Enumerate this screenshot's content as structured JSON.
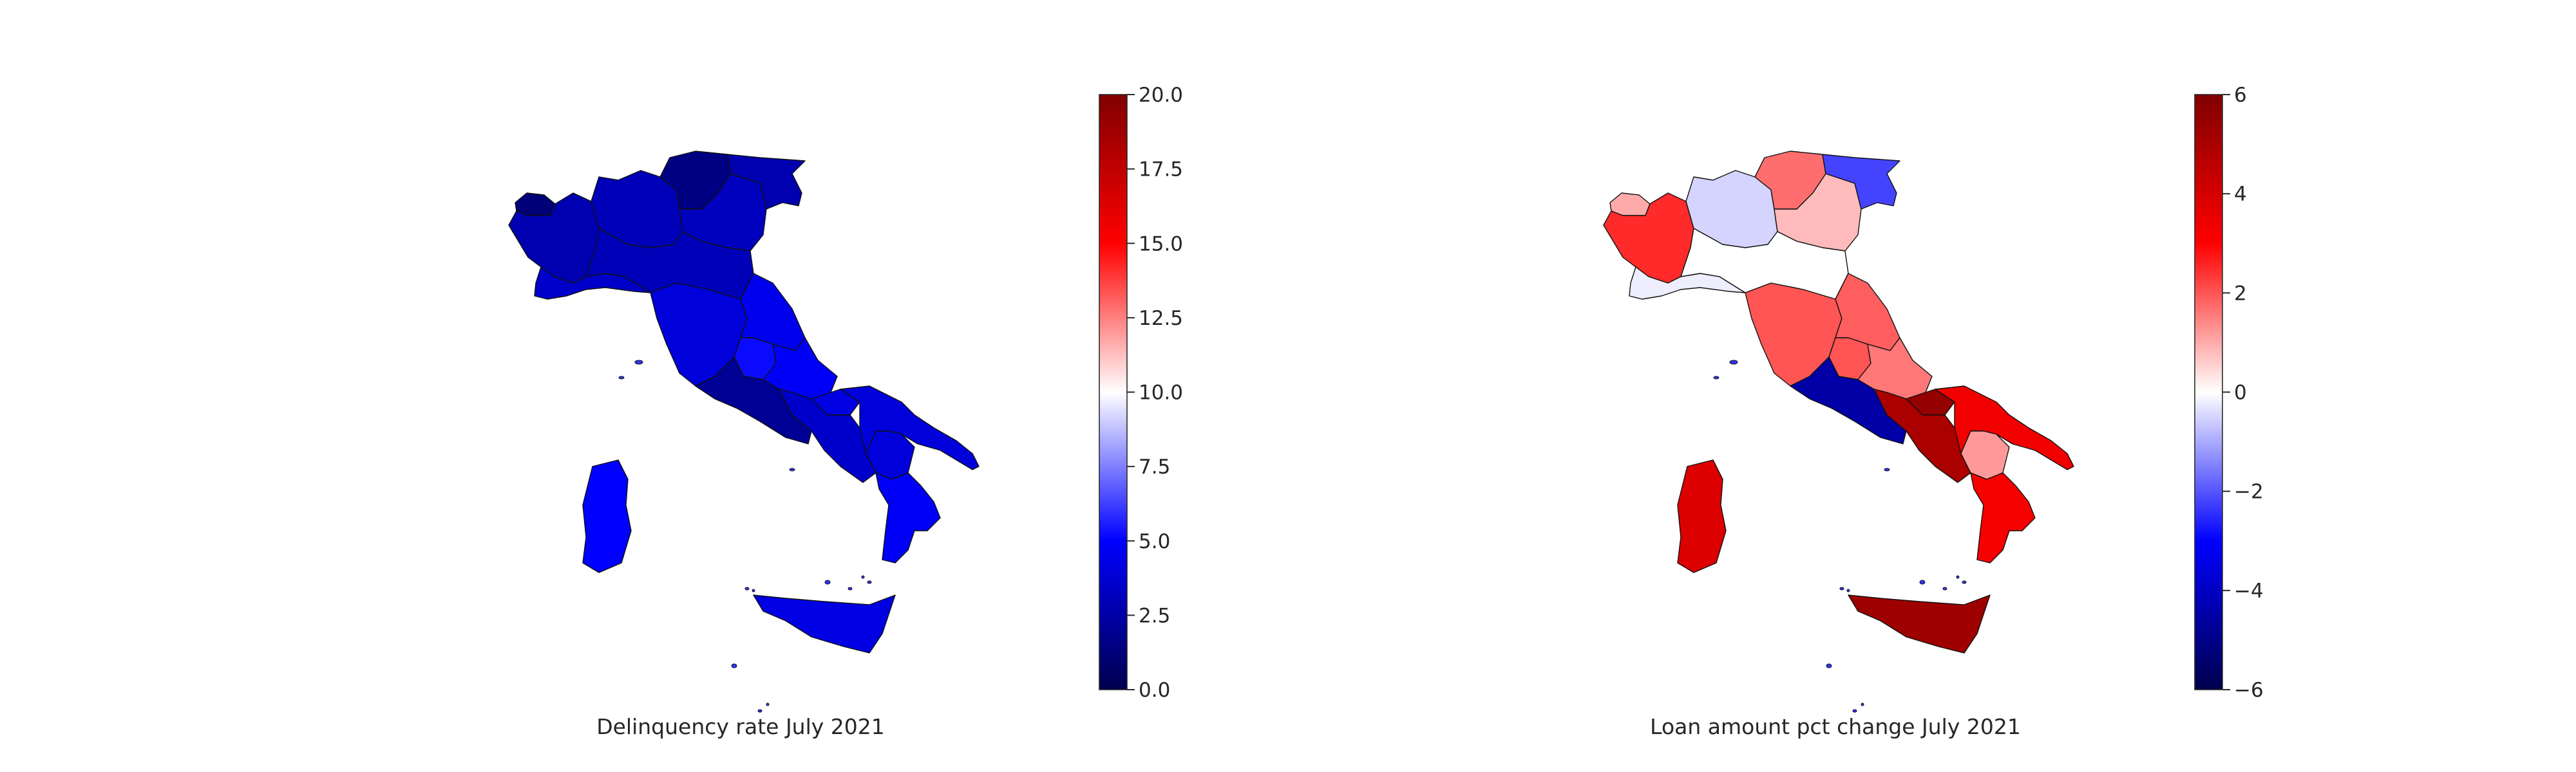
{
  "maps": [
    {
      "title": "Delinquency rate July 2021",
      "colorbar": {
        "min": 0,
        "max": 20,
        "colormap": "seismic",
        "ticks": [
          "0.0",
          "2.5",
          "5.0",
          "7.5",
          "10.0",
          "12.5",
          "15.0",
          "17.5",
          "20.0"
        ]
      },
      "regions": [
        {
          "name": "Valle d'Aosta",
          "value": 1.2
        },
        {
          "name": "Piemonte",
          "value": 2.8
        },
        {
          "name": "Lombardia",
          "value": 3.0
        },
        {
          "name": "Trentino-Alto Adige",
          "value": 1.5
        },
        {
          "name": "Veneto",
          "value": 3.2
        },
        {
          "name": "Friuli-Venezia Giulia",
          "value": 2.8
        },
        {
          "name": "Liguria",
          "value": 3.5
        },
        {
          "name": "Emilia-Romagna",
          "value": 3.0
        },
        {
          "name": "Toscana",
          "value": 4.0
        },
        {
          "name": "Marche",
          "value": 4.5
        },
        {
          "name": "Umbria",
          "value": 5.2
        },
        {
          "name": "Lazio",
          "value": 2.0
        },
        {
          "name": "Abruzzo",
          "value": 4.8
        },
        {
          "name": "Molise",
          "value": 4.2
        },
        {
          "name": "Campania",
          "value": 3.5
        },
        {
          "name": "Puglia",
          "value": 4.0
        },
        {
          "name": "Basilicata",
          "value": 4.0
        },
        {
          "name": "Calabria",
          "value": 4.8
        },
        {
          "name": "Sicilia",
          "value": 4.2
        },
        {
          "name": "Sardegna",
          "value": 5.0
        }
      ]
    },
    {
      "title": "Loan amount pct change July 2021",
      "colorbar": {
        "min": -6,
        "max": 6,
        "colormap": "seismic",
        "ticks": [
          "−6",
          "−4",
          "−2",
          "0",
          "2",
          "4",
          "6"
        ]
      },
      "regions": [
        {
          "name": "Valle d'Aosta",
          "value": 1.0
        },
        {
          "name": "Piemonte",
          "value": 2.5
        },
        {
          "name": "Lombardia",
          "value": -0.5
        },
        {
          "name": "Trentino-Alto Adige",
          "value": 1.7
        },
        {
          "name": "Veneto",
          "value": 0.8
        },
        {
          "name": "Friuli-Venezia Giulia",
          "value": -2.2
        },
        {
          "name": "Liguria",
          "value": -0.2
        },
        {
          "name": "Emilia-Romagna",
          "value": 0.0
        },
        {
          "name": "Toscana",
          "value": 2.0
        },
        {
          "name": "Marche",
          "value": 1.9
        },
        {
          "name": "Umbria",
          "value": 2.0
        },
        {
          "name": "Lazio",
          "value": -4.5
        },
        {
          "name": "Abruzzo",
          "value": 1.6
        },
        {
          "name": "Molise",
          "value": 5.5
        },
        {
          "name": "Campania",
          "value": 5.0
        },
        {
          "name": "Puglia",
          "value": 3.3
        },
        {
          "name": "Basilicata",
          "value": 1.2
        },
        {
          "name": "Calabria",
          "value": 3.2
        },
        {
          "name": "Sicilia",
          "value": 5.3
        },
        {
          "name": "Sardegna",
          "value": 3.8
        }
      ]
    }
  ]
}
